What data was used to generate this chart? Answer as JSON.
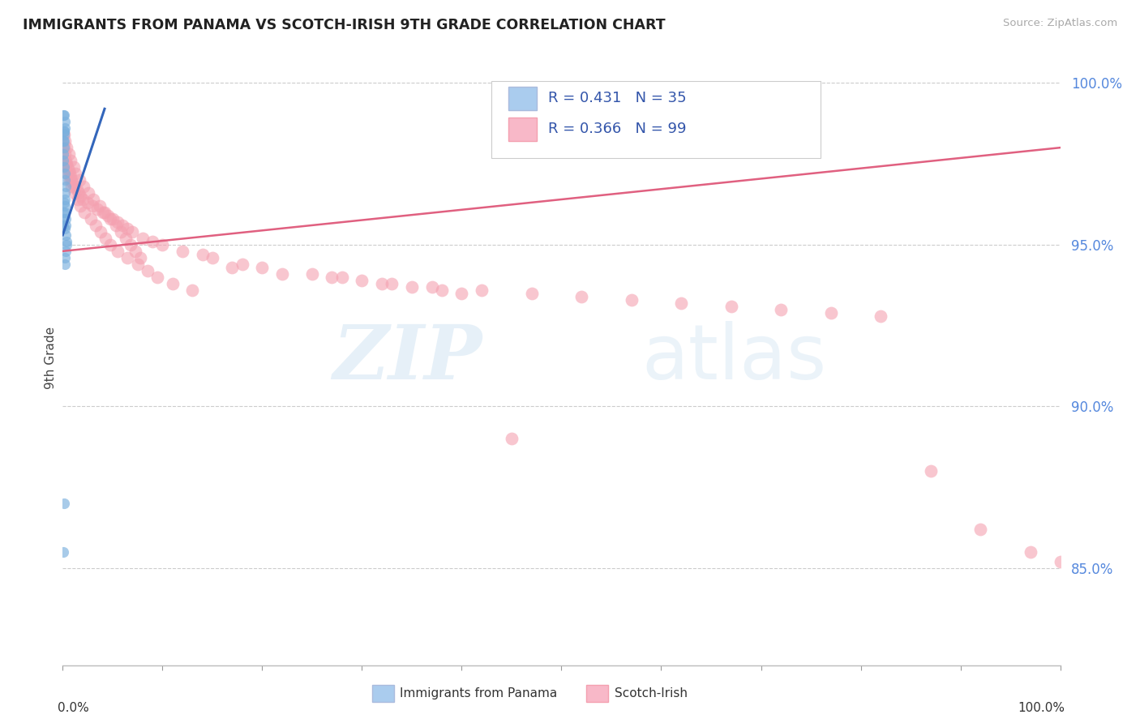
{
  "title": "IMMIGRANTS FROM PANAMA VS SCOTCH-IRISH 9TH GRADE CORRELATION CHART",
  "source_text": "Source: ZipAtlas.com",
  "ylabel": "9th Grade",
  "watermark_zip": "ZIP",
  "watermark_atlas": "atlas",
  "blue_scatter": {
    "x": [
      0.0008,
      0.0012,
      0.0015,
      0.0008,
      0.0005,
      0.001,
      0.0012,
      0.0018,
      0.002,
      0.0015,
      0.001,
      0.0008,
      0.0012,
      0.002,
      0.0025,
      0.003,
      0.0022,
      0.0018,
      0.0015,
      0.002,
      0.0025,
      0.003,
      0.0028,
      0.0022,
      0.003,
      0.0035,
      0.004,
      0.003,
      0.0025,
      0.002,
      0.001,
      0.0008,
      0.0006,
      0.0005,
      0.0004
    ],
    "y": [
      0.99,
      0.985,
      0.99,
      0.982,
      0.978,
      0.982,
      0.985,
      0.988,
      0.986,
      0.984,
      0.98,
      0.976,
      0.974,
      0.972,
      0.97,
      0.968,
      0.966,
      0.964,
      0.963,
      0.962,
      0.96,
      0.958,
      0.956,
      0.955,
      0.953,
      0.951,
      0.95,
      0.948,
      0.946,
      0.944,
      0.87,
      0.855,
      0.96,
      0.958,
      0.956
    ],
    "color": "#7ab0de",
    "alpha": 0.65,
    "size": 90
  },
  "pink_scatter": {
    "x": [
      0.001,
      0.002,
      0.003,
      0.004,
      0.005,
      0.006,
      0.007,
      0.008,
      0.009,
      0.01,
      0.012,
      0.014,
      0.016,
      0.018,
      0.02,
      0.025,
      0.03,
      0.035,
      0.04,
      0.045,
      0.05,
      0.055,
      0.06,
      0.065,
      0.07,
      0.08,
      0.09,
      0.1,
      0.12,
      0.14,
      0.15,
      0.18,
      0.2,
      0.25,
      0.28,
      0.3,
      0.32,
      0.35,
      0.38,
      0.4,
      0.003,
      0.005,
      0.007,
      0.009,
      0.012,
      0.015,
      0.018,
      0.022,
      0.028,
      0.033,
      0.038,
      0.043,
      0.048,
      0.055,
      0.065,
      0.075,
      0.085,
      0.095,
      0.11,
      0.13,
      0.001,
      0.002,
      0.004,
      0.006,
      0.008,
      0.011,
      0.013,
      0.017,
      0.021,
      0.026,
      0.031,
      0.037,
      0.042,
      0.048,
      0.053,
      0.058,
      0.063,
      0.068,
      0.073,
      0.078,
      0.17,
      0.22,
      0.27,
      0.33,
      0.37,
      0.42,
      0.47,
      0.52,
      0.57,
      0.62,
      0.67,
      0.72,
      0.77,
      0.82,
      0.87,
      0.92,
      0.97,
      1.0,
      0.45
    ],
    "y": [
      0.98,
      0.978,
      0.976,
      0.975,
      0.974,
      0.973,
      0.972,
      0.971,
      0.97,
      0.969,
      0.968,
      0.967,
      0.966,
      0.965,
      0.964,
      0.963,
      0.962,
      0.961,
      0.96,
      0.959,
      0.958,
      0.957,
      0.956,
      0.955,
      0.954,
      0.952,
      0.951,
      0.95,
      0.948,
      0.947,
      0.946,
      0.944,
      0.943,
      0.941,
      0.94,
      0.939,
      0.938,
      0.937,
      0.936,
      0.935,
      0.975,
      0.972,
      0.97,
      0.968,
      0.966,
      0.964,
      0.962,
      0.96,
      0.958,
      0.956,
      0.954,
      0.952,
      0.95,
      0.948,
      0.946,
      0.944,
      0.942,
      0.94,
      0.938,
      0.936,
      0.984,
      0.982,
      0.98,
      0.978,
      0.976,
      0.974,
      0.972,
      0.97,
      0.968,
      0.966,
      0.964,
      0.962,
      0.96,
      0.958,
      0.956,
      0.954,
      0.952,
      0.95,
      0.948,
      0.946,
      0.943,
      0.941,
      0.94,
      0.938,
      0.937,
      0.936,
      0.935,
      0.934,
      0.933,
      0.932,
      0.931,
      0.93,
      0.929,
      0.928,
      0.88,
      0.862,
      0.855,
      0.852,
      0.89
    ],
    "color": "#f4a0b0",
    "alpha": 0.6,
    "size": 130
  },
  "blue_line_x": [
    0.0,
    0.042
  ],
  "blue_line_y": [
    0.953,
    0.992
  ],
  "pink_line_x": [
    0.0,
    1.0
  ],
  "pink_line_y": [
    0.948,
    0.98
  ],
  "blue_line_color": "#3366bb",
  "pink_line_color": "#e06080",
  "xlim": [
    0.0,
    1.0
  ],
  "ylim": [
    0.82,
    1.01
  ],
  "yticks": [
    0.85,
    0.9,
    0.95,
    1.0
  ],
  "yticklabels": [
    "85.0%",
    "90.0%",
    "95.0%",
    "100.0%"
  ],
  "xtick_positions": [
    0.0,
    0.1,
    0.2,
    0.3,
    0.4,
    0.5,
    0.6,
    0.7,
    0.8,
    0.9,
    1.0
  ],
  "grid_color": "#cccccc",
  "bg_color": "#ffffff",
  "title_color": "#222222",
  "right_tick_color": "#5588dd",
  "legend_r1": "R = 0.431   N = 35",
  "legend_r2": "R = 0.366   N = 99",
  "legend_blue_color": "#aaccee",
  "legend_pink_color": "#f8b8c8",
  "legend_text_color": "#3355aa",
  "bottom_label1": "Immigrants from Panama",
  "bottom_label2": "Scotch-Irish",
  "source_color": "#aaaaaa"
}
